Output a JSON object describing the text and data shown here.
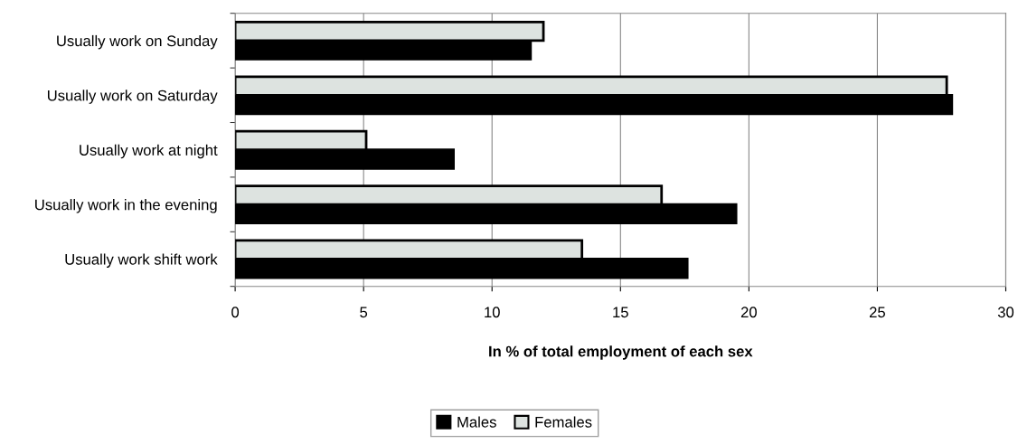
{
  "chart_data": {
    "type": "bar",
    "orientation": "horizontal",
    "xlabel": "In % of total employment of each sex",
    "categories": [
      "Usually work on Sunday",
      "Usually work on Saturday",
      "Usually work at night",
      "Usually work in the evening",
      "Usually work shift work"
    ],
    "series": [
      {
        "name": "Males",
        "color": "#000000",
        "values": [
          11.5,
          27.9,
          8.5,
          19.5,
          17.6
        ]
      },
      {
        "name": "Females",
        "color": "#dde3e0",
        "values": [
          12.0,
          27.7,
          5.1,
          16.6,
          13.5
        ]
      }
    ],
    "xlim": [
      0,
      30
    ],
    "xticks": [
      0,
      5,
      10,
      15,
      20,
      25,
      30
    ],
    "grid": "x",
    "legend": "bottom"
  }
}
